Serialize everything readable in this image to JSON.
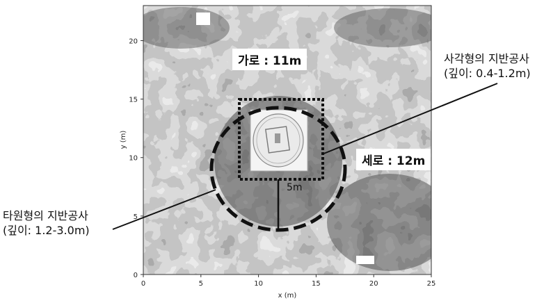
{
  "axes": {
    "xlabel": "x (m)",
    "ylabel": "y (m)",
    "x_range": [
      0,
      25
    ],
    "y_range": [
      0,
      23
    ],
    "x_ticks": [
      "0",
      "5",
      "10",
      "15",
      "20",
      "25"
    ],
    "y_ticks": [
      "0",
      "5",
      "10",
      "15",
      "20"
    ]
  },
  "labels": {
    "width_label": "가로 : 11m",
    "height_label": "세로 : 12m",
    "radius_label": "5m",
    "rect_callout": [
      "사각형의 지반공사",
      "(깊이: 0.4-1.2m)"
    ],
    "ellipse_callout": [
      "타원형의 지반공사",
      "(깊이: 1.2-3.0m)"
    ]
  }
}
